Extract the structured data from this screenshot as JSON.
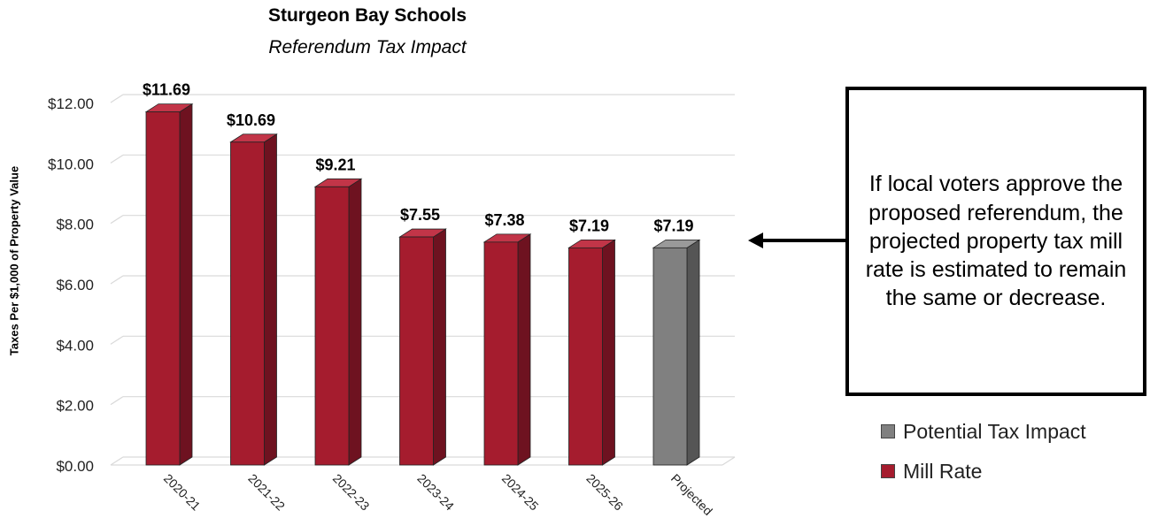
{
  "chart_data": {
    "type": "bar",
    "title": "Sturgeon Bay Schools",
    "subtitle": "Referendum Tax Impact",
    "ylabel": "Taxes Per $1,000  of Property Value",
    "xlabel": "",
    "categories": [
      "2020-21",
      "2021-22",
      "2022-23",
      "2023-24",
      "2024-25",
      "2025-26",
      "Projected"
    ],
    "values": [
      11.69,
      10.69,
      9.21,
      7.55,
      7.38,
      7.19,
      7.19
    ],
    "data_labels": [
      "$11.69",
      "$10.69",
      "$9.21",
      "$7.55",
      "$7.38",
      "$7.19",
      "$7.19"
    ],
    "bar_series": [
      "Mill Rate",
      "Mill Rate",
      "Mill Rate",
      "Mill Rate",
      "Mill Rate",
      "Mill Rate",
      "Potential Tax Impact"
    ],
    "ylim": [
      0,
      12
    ],
    "y_ticks": [
      0,
      2,
      4,
      6,
      8,
      10,
      12
    ],
    "y_tick_labels": [
      "$0.00",
      "$2.00",
      "$4.00",
      "$6.00",
      "$8.00",
      "$10.00",
      "$12.00"
    ],
    "grid": true,
    "style": "3d-column",
    "legend": {
      "position": "right",
      "entries": [
        {
          "name": "Potential Tax Impact",
          "color": "#808080"
        },
        {
          "name": "Mill Rate",
          "color": "#a51c2e"
        }
      ]
    },
    "annotation": {
      "text": "If local voters approve the proposed referendum, the projected property tax mill rate is estimated to remain the same or decrease.",
      "points_to": "Projected"
    }
  },
  "colors": {
    "mill_rate": "#a51c2e",
    "mill_rate_side": "#6e1220",
    "mill_rate_top": "#c23548",
    "potential": "#808080",
    "potential_side": "#555555",
    "potential_top": "#9a9a9a",
    "grid": "#d9d9d9"
  }
}
